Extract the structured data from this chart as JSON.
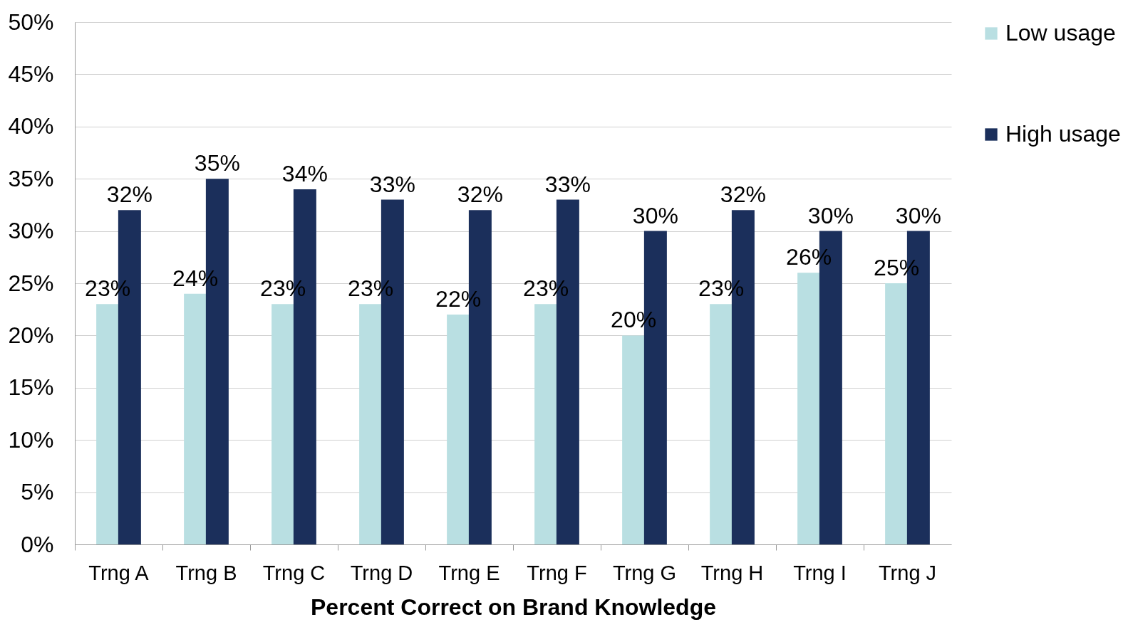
{
  "chart_data": {
    "type": "bar",
    "xlabel": "Percent Correct on Brand Knowledge",
    "categories": [
      "Trng A",
      "Trng B",
      "Trng C",
      "Trng D",
      "Trng E",
      "Trng F",
      "Trng G",
      "Trng H",
      "Trng I",
      "Trng J"
    ],
    "series": [
      {
        "name": "Low usage",
        "color": "#b9dfe2",
        "values": [
          23,
          24,
          23,
          23,
          22,
          23,
          20,
          23,
          26,
          25
        ],
        "value_labels": [
          "23%",
          "24%",
          "23%",
          "23%",
          "22%",
          "23%",
          "20%",
          "23%",
          "26%",
          "25%"
        ]
      },
      {
        "name": "High usage",
        "color": "#1b2f5b",
        "values": [
          32,
          35,
          34,
          33,
          32,
          33,
          30,
          32,
          30,
          30
        ],
        "value_labels": [
          "32%",
          "35%",
          "34%",
          "33%",
          "32%",
          "33%",
          "30%",
          "32%",
          "30%",
          "30%"
        ]
      }
    ],
    "ylim": [
      0,
      50
    ],
    "yticks": [
      {
        "value": 0,
        "label": "0%"
      },
      {
        "value": 5,
        "label": "5%"
      },
      {
        "value": 10,
        "label": "10%"
      },
      {
        "value": 15,
        "label": "15%"
      },
      {
        "value": 20,
        "label": "20%"
      },
      {
        "value": 25,
        "label": "25%"
      },
      {
        "value": 30,
        "label": "30%"
      },
      {
        "value": 35,
        "label": "35%"
      },
      {
        "value": 40,
        "label": "40%"
      },
      {
        "value": 45,
        "label": "45%"
      },
      {
        "value": 50,
        "label": "50%"
      }
    ],
    "grid": "y",
    "legend": "right"
  }
}
